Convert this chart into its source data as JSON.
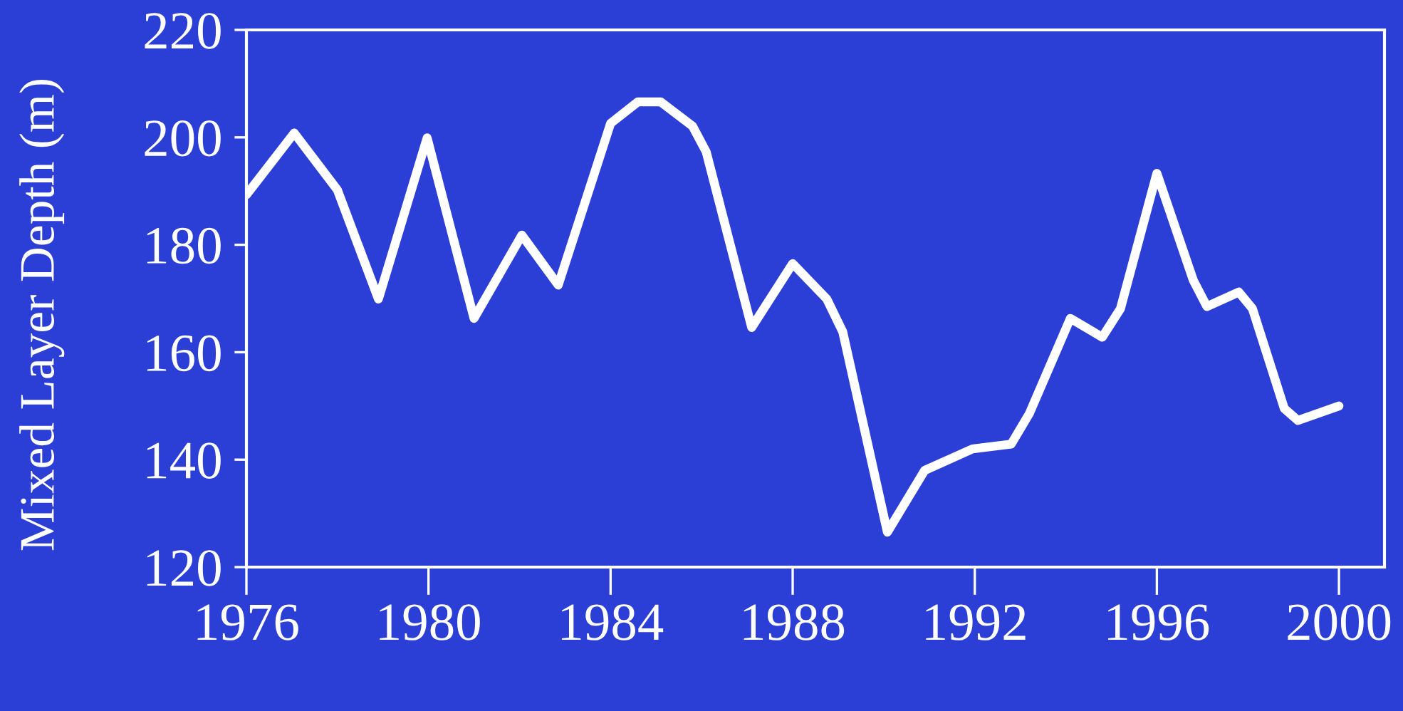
{
  "chart_data": {
    "type": "line",
    "ylabel": "Mixed Layer Depth (m)",
    "xlim": [
      1976,
      2001
    ],
    "xticks": [
      1976,
      1980,
      1984,
      1988,
      1992,
      1996,
      2000
    ],
    "ylim": [
      120,
      220
    ],
    "yticks": [
      120,
      140,
      160,
      180,
      200,
      220
    ],
    "grid": false,
    "legend": false,
    "marker": "none",
    "line_style": "solid",
    "series": [
      {
        "color": "#ffffff",
        "x": [
          1976,
          1977.05,
          1978,
          1978.9,
          1979.97,
          1981.0,
          1982.05,
          1982.85,
          1984,
          1984.6,
          1985.1,
          1985.8,
          1986.1,
          1987.1,
          1988.0,
          1988.75,
          1989.1,
          1990.08,
          1990.9,
          1991.95,
          1992.8,
          1993.2,
          1994.1,
          1994.8,
          1995.2,
          1996.0,
          1996.8,
          1997.1,
          1997.8,
          1998.1,
          1998.8,
          1999.1,
          2000
        ],
        "values": [
          189.3,
          200.8,
          190.2,
          169.9,
          199.9,
          166.3,
          181.8,
          172.5,
          202.6,
          206.6,
          206.6,
          202.1,
          197.3,
          164.6,
          176.5,
          169.9,
          163.8,
          126.5,
          138.0,
          142.0,
          142.9,
          148.6,
          166.3,
          162.8,
          168.1,
          193.3,
          173.4,
          168.5,
          171.2,
          168.1,
          149.5,
          147.3,
          150.0
        ]
      }
    ]
  }
}
